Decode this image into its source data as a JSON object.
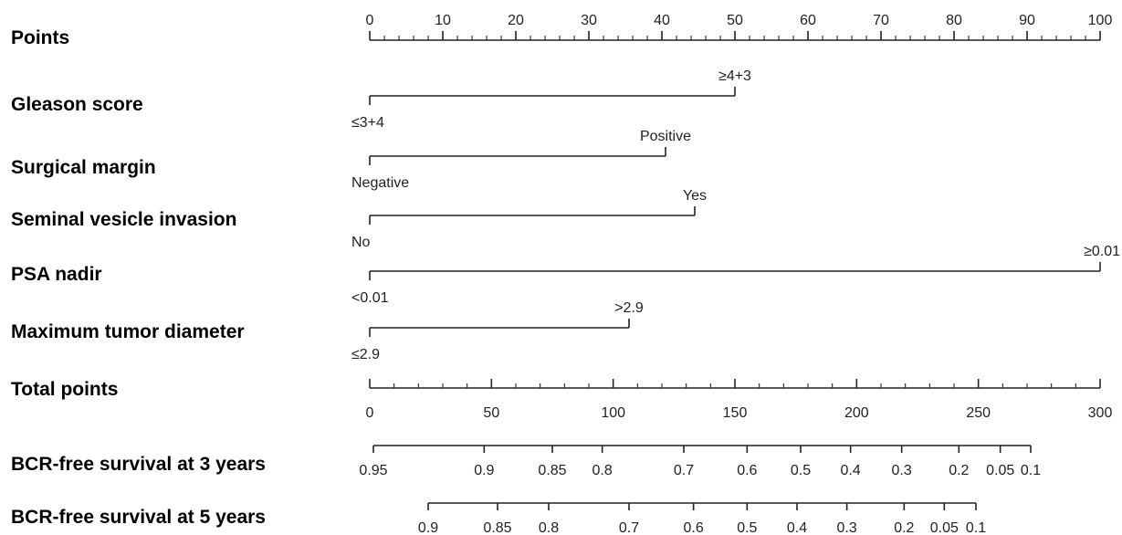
{
  "chart_data": {
    "type": "nomogram",
    "rows": [
      {
        "label": "Points",
        "kind": "points-axis",
        "range": [
          0,
          100
        ],
        "ticks": [
          0,
          10,
          20,
          30,
          40,
          50,
          60,
          70,
          80,
          90,
          100
        ],
        "tick_labels": [
          "0",
          "10",
          "20",
          "30",
          "40",
          "50",
          "60",
          "70",
          "80",
          "90",
          "100"
        ]
      },
      {
        "label": "Gleason score",
        "kind": "predictor",
        "levels": [
          {
            "label": "≤3+4",
            "points": 0
          },
          {
            "label": "≥4+3",
            "points": 50
          }
        ]
      },
      {
        "label": "Surgical margin",
        "kind": "predictor",
        "levels": [
          {
            "label": "Negative",
            "points": 0
          },
          {
            "label": "Positive",
            "points": 40.5
          }
        ]
      },
      {
        "label": "Seminal vesicle invasion",
        "kind": "predictor",
        "levels": [
          {
            "label": "No",
            "points": 0
          },
          {
            "label": "Yes",
            "points": 44.5
          }
        ]
      },
      {
        "label": "PSA nadir",
        "kind": "predictor",
        "levels": [
          {
            "label": "<0.01",
            "points": 0
          },
          {
            "label": "≥0.01",
            "points": 100
          }
        ]
      },
      {
        "label": "Maximum tumor diameter",
        "kind": "predictor",
        "levels": [
          {
            "label": "≤2.9",
            "points": 0
          },
          {
            "label": ">2.9",
            "points": 35.5
          }
        ]
      },
      {
        "label": "Total points",
        "kind": "total-axis",
        "range": [
          0,
          300
        ],
        "ticks": [
          0,
          50,
          100,
          150,
          200,
          250,
          300
        ],
        "tick_labels": [
          "0",
          "50",
          "100",
          "150",
          "200",
          "250",
          "300"
        ]
      },
      {
        "label": "BCR-free survival at 3 years",
        "kind": "probability-axis",
        "ticks": [
          {
            "label": "0.95",
            "total_points": 1.5
          },
          {
            "label": "0.9",
            "total_points": 47
          },
          {
            "label": "0.85",
            "total_points": 75
          },
          {
            "label": "0.8",
            "total_points": 95.5
          },
          {
            "label": "0.7",
            "total_points": 129
          },
          {
            "label": "0.6",
            "total_points": 155
          },
          {
            "label": "0.5",
            "total_points": 177
          },
          {
            "label": "0.4",
            "total_points": 197.5
          },
          {
            "label": "0.3",
            "total_points": 218.5
          },
          {
            "label": "0.2",
            "total_points": 242
          },
          {
            "label": "0.1",
            "total_points": 271.5
          },
          {
            "label": "0.05",
            "total_points": 259
          }
        ]
      },
      {
        "label": "BCR-free survival at 5 years",
        "kind": "probability-axis",
        "ticks": [
          {
            "label": "0.9",
            "total_points": 24
          },
          {
            "label": "0.85",
            "total_points": 52.5
          },
          {
            "label": "0.8",
            "total_points": 73.5
          },
          {
            "label": "0.7",
            "total_points": 106.5
          },
          {
            "label": "0.6",
            "total_points": 133
          },
          {
            "label": "0.5",
            "total_points": 155
          },
          {
            "label": "0.4",
            "total_points": 175.5
          },
          {
            "label": "0.3",
            "total_points": 196
          },
          {
            "label": "0.2",
            "total_points": 219.5
          },
          {
            "label": "0.1",
            "total_points": 249
          },
          {
            "label": "0.05",
            "total_points": 236
          }
        ]
      }
    ]
  }
}
